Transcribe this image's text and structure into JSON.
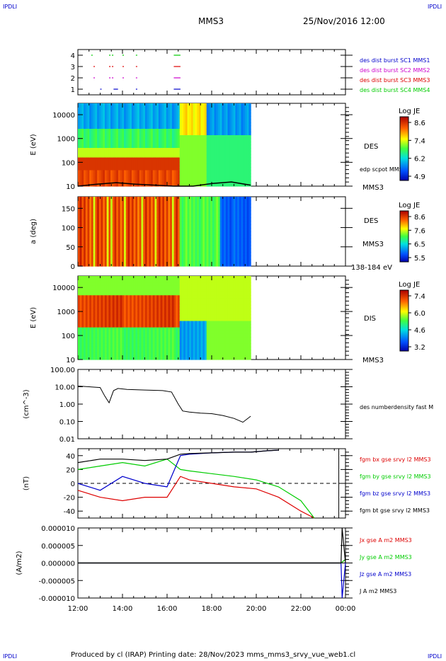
{
  "header": {
    "corner_left": "IPDLI",
    "corner_right": "IPDLI",
    "spacecraft": "MMS3",
    "datetime": "25/Nov/2016 12:00"
  },
  "footer": {
    "text": "Produced by cl (IRAP)   Printing date: 28/Nov/2023   mms_mms3_srvy_vue_web1.cl",
    "corner_left": "IPDLI",
    "corner_right": "IPDLI"
  },
  "time_axis": {
    "ticks": [
      "12:00",
      "14:00",
      "16:00",
      "18:00",
      "20:00",
      "22:00",
      "00:00"
    ],
    "range_hours": [
      12,
      24
    ]
  },
  "colors": {
    "blue": "#0000cc",
    "magenta": "#cc00cc",
    "red": "#dd0000",
    "green": "#00cc00",
    "black": "#000000"
  },
  "chart_data": [
    {
      "type": "line",
      "title": "",
      "ylabel": "",
      "ytick_labels": [
        "4",
        "3",
        "2",
        "1"
      ],
      "ylim": [
        0.5,
        4.5
      ],
      "series": [
        {
          "name": "des dist burst SC1 MMS1",
          "y": 1,
          "color": "#0000cc",
          "intervals_h": [
            [
              13.0,
              13.1
            ],
            [
              13.6,
              13.8
            ],
            [
              14.6,
              14.7
            ],
            [
              16.3,
              16.6
            ]
          ]
        },
        {
          "name": "des dist burst SC2 MMS2",
          "y": 2,
          "color": "#cc00cc",
          "intervals_h": [
            [
              12.7,
              12.8
            ],
            [
              13.4,
              13.6
            ],
            [
              14.0,
              14.1
            ],
            [
              14.6,
              14.7
            ],
            [
              16.3,
              16.6
            ]
          ]
        },
        {
          "name": "des dist burst SC3 MMS3",
          "y": 3,
          "color": "#dd0000",
          "intervals_h": [
            [
              12.7,
              12.8
            ],
            [
              13.4,
              13.6
            ],
            [
              14.0,
              14.1
            ],
            [
              14.6,
              14.7
            ],
            [
              16.3,
              16.6
            ]
          ]
        },
        {
          "name": "des dist burst SC4 MMS4",
          "y": 4,
          "color": "#00cc00",
          "intervals_h": [
            [
              12.6,
              12.7
            ],
            [
              13.4,
              13.6
            ],
            [
              14.0,
              14.1
            ],
            [
              14.6,
              14.7
            ],
            [
              16.3,
              16.6
            ]
          ]
        }
      ]
    },
    {
      "type": "heatmap",
      "ylabel": "E (eV)",
      "ytick_labels": [
        "10000",
        "1000",
        "100",
        "10"
      ],
      "yscale": "log",
      "ylim": [
        10,
        30000
      ],
      "instrument": "DES",
      "spacecraft": "MMS3",
      "colorbar": {
        "title": "Log JE",
        "tick_labels": [
          "8.6",
          "7.4",
          "6.2",
          "4.9"
        ],
        "range": [
          4.9,
          8.6
        ]
      },
      "overlay": {
        "name": "edp scpot MMS3",
        "values_eV": [
          10,
          12,
          14,
          12,
          11,
          10,
          10,
          13,
          15,
          11
        ]
      },
      "data_end_h": 19.75
    },
    {
      "type": "heatmap",
      "ylabel": "a (deg)",
      "ytick_labels": [
        "150",
        "100",
        "50",
        "0"
      ],
      "ylim": [
        0,
        180
      ],
      "instrument": "DES",
      "spacecraft": "MMS3",
      "energy_range": "138-184 eV",
      "colorbar": {
        "title": "Log JE",
        "tick_labels": [
          "8.6",
          "7.6",
          "6.5",
          "5.5"
        ],
        "range": [
          5.5,
          8.6
        ]
      },
      "data_end_h": 19.75
    },
    {
      "type": "heatmap",
      "ylabel": "E (eV)",
      "ytick_labels": [
        "10000",
        "1000",
        "100",
        "10"
      ],
      "yscale": "log",
      "ylim": [
        10,
        30000
      ],
      "instrument": "DIS",
      "spacecraft": "MMS3",
      "colorbar": {
        "title": "Log JE",
        "tick_labels": [
          "7.4",
          "6.0",
          "4.6",
          "3.2"
        ],
        "range": [
          3.2,
          7.4
        ]
      },
      "data_end_h": 19.75
    },
    {
      "type": "line",
      "ylabel": "(cm^-3)",
      "yscale": "log",
      "ytick_labels": [
        "100.00",
        "10.00",
        "1.00",
        "0.10",
        "0.01"
      ],
      "ylim": [
        0.01,
        100
      ],
      "series": [
        {
          "name": "des numberdensity fast M",
          "color": "#000000",
          "x_h": [
            12.0,
            12.5,
            13.0,
            13.2,
            13.4,
            13.6,
            13.8,
            14.2,
            15.0,
            15.8,
            16.2,
            16.5,
            16.7,
            17.0,
            17.5,
            18.0,
            18.5,
            19.0,
            19.4,
            19.75
          ],
          "y": [
            11,
            10,
            9,
            3,
            1.2,
            6,
            8,
            7,
            6.5,
            6,
            5,
            1.0,
            0.4,
            0.35,
            0.3,
            0.28,
            0.22,
            0.15,
            0.09,
            0.2
          ]
        }
      ]
    },
    {
      "type": "line",
      "ylabel": "(nT)",
      "ytick_labels": [
        "40",
        "20",
        "0",
        "-20",
        "-40"
      ],
      "ylim": [
        -50,
        50
      ],
      "series": [
        {
          "name": "fgm bx gse srvy l2 MMS3",
          "color": "#dd0000",
          "x_h": [
            12.0,
            13.0,
            14.0,
            15.0,
            16.0,
            16.6,
            17.0,
            18.0,
            19.0,
            20.0,
            21.0,
            22.0,
            22.6
          ],
          "y": [
            -10,
            -20,
            -25,
            -20,
            -20,
            10,
            5,
            0,
            -5,
            -8,
            -20,
            -40,
            -50
          ]
        },
        {
          "name": "fgm by gse srvy l2 MMS3",
          "color": "#00cc00",
          "x_h": [
            12.0,
            13.0,
            14.0,
            15.0,
            16.0,
            16.6,
            17.0,
            18.0,
            19.0,
            20.0,
            21.0,
            22.0,
            22.6
          ],
          "y": [
            20,
            25,
            30,
            25,
            35,
            20,
            18,
            14,
            10,
            5,
            -5,
            -25,
            -50
          ]
        },
        {
          "name": "fgm bz gse srvy l2 MMS3",
          "color": "#0000cc",
          "x_h": [
            12.0,
            13.0,
            14.0,
            15.0,
            16.0,
            16.6,
            17.0,
            18.0,
            19.0,
            19.75,
            20.5,
            21.0
          ],
          "y": [
            0,
            -10,
            10,
            0,
            -5,
            40,
            42,
            44,
            45,
            45,
            47,
            48
          ]
        },
        {
          "name": "fgm bt gse srvy l2 MMS3",
          "color": "#000000",
          "x_h": [
            12.0,
            13.0,
            14.0,
            15.0,
            16.0,
            16.6,
            17.0,
            18.0,
            19.0,
            19.75,
            20.5,
            21.0
          ],
          "y": [
            30,
            35,
            35,
            33,
            35,
            42,
            43,
            44,
            45,
            45,
            47,
            48
          ]
        }
      ]
    },
    {
      "type": "line",
      "ylabel": "(A/m2)",
      "ytick_labels": [
        "0.000010",
        "0.000005",
        "0.000000",
        "-0.000005",
        "-0.000010"
      ],
      "ylim": [
        -1e-05,
        1e-05
      ],
      "series": [
        {
          "name": "Jx gse A m2 MMS3",
          "color": "#dd0000",
          "x_h": [
            12.0,
            16.6,
            23.8,
            24.0
          ],
          "y": [
            0,
            0,
            0,
            1e-06
          ]
        },
        {
          "name": "Jy gse A m2 MMS3",
          "color": "#00cc00",
          "x_h": [
            12.0,
            16.6,
            23.8,
            24.0
          ],
          "y": [
            0,
            0,
            0,
            1e-06
          ]
        },
        {
          "name": "Jz gse A m2 MMS3",
          "color": "#0000cc",
          "x_h": [
            12.0,
            16.6,
            23.8,
            23.85,
            24.0
          ],
          "y": [
            0,
            0,
            0,
            -1e-05,
            0
          ]
        },
        {
          "name": "J A m2 MMS3",
          "color": "#000000",
          "x_h": [
            12.0,
            16.6,
            23.8,
            23.85,
            24.0
          ],
          "y": [
            0,
            0,
            0,
            1e-05,
            0
          ]
        }
      ]
    }
  ]
}
